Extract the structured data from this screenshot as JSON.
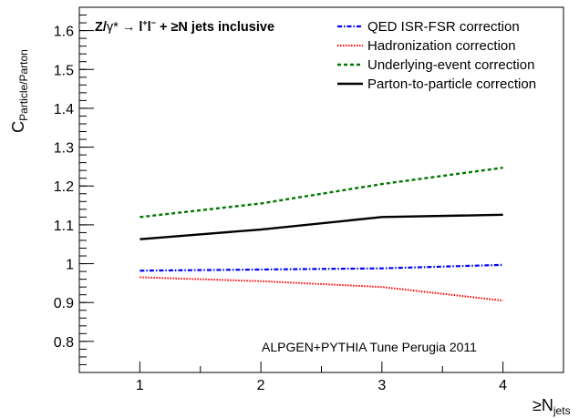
{
  "chart_data": {
    "type": "line",
    "title_parts": {
      "z": "Z/",
      "gamma": "γ*",
      "arrow": " → ",
      "l1": "l",
      "plus_sup": "+",
      "l2": "l",
      "minus_sup": "−",
      "rest": " + ≥N jets inclusive"
    },
    "ylabel": {
      "main": "C",
      "sub": "Particle/Parton"
    },
    "xlabel": {
      "main": "≥N",
      "sub": "jets"
    },
    "annotation": "ALPGEN+PYTHIA Tune Perugia 2011",
    "xlim": [
      0.5,
      4.5
    ],
    "ylim": [
      0.72,
      1.66
    ],
    "x_ticks": [
      1,
      2,
      3,
      4
    ],
    "x_tick_labels": [
      "1",
      "2",
      "3",
      "4"
    ],
    "y_ticks": [
      0.8,
      0.9,
      1.0,
      1.1,
      1.2,
      1.3,
      1.4,
      1.5,
      1.6
    ],
    "y_tick_labels": [
      "0.8",
      "0.9",
      "1",
      "1.1",
      "1.2",
      "1.3",
      "1.4",
      "1.5",
      "1.6"
    ],
    "grid": false,
    "legend_position": "top-right",
    "x": [
      1,
      2,
      3,
      4
    ],
    "series": [
      {
        "name": "QED ISR-FSR correction",
        "values": [
          0.982,
          0.985,
          0.988,
          0.997
        ],
        "color": "#0000ff",
        "style": "dashdot"
      },
      {
        "name": "Hadronization correction",
        "values": [
          0.965,
          0.955,
          0.94,
          0.905
        ],
        "color": "#ff0000",
        "style": "dotted"
      },
      {
        "name": "Underlying-event correction",
        "values": [
          1.12,
          1.155,
          1.205,
          1.247
        ],
        "color": "#007700",
        "style": "dashed"
      },
      {
        "name": "Parton-to-particle correction",
        "values": [
          1.063,
          1.088,
          1.12,
          1.126
        ],
        "color": "#000000",
        "style": "solid"
      }
    ]
  }
}
